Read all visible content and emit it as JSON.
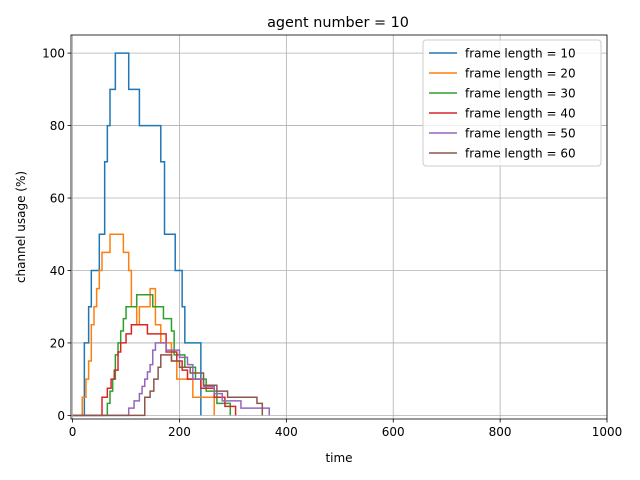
{
  "chart_data": {
    "type": "line",
    "title": "agent number = 10",
    "xlabel": "time",
    "ylabel": "channel usage (%)",
    "xlim": [
      -3,
      1000
    ],
    "ylim": [
      -1,
      105
    ],
    "xticks": [
      0,
      200,
      400,
      600,
      800,
      1000
    ],
    "yticks": [
      0,
      20,
      40,
      60,
      80,
      100
    ],
    "grid": true,
    "legend_position": "top-right",
    "step": true,
    "series": [
      {
        "name": "frame length = 10",
        "color": "#1f77b4",
        "points": [
          [
            0,
            0
          ],
          [
            22,
            0
          ],
          [
            22,
            20
          ],
          [
            30,
            20
          ],
          [
            30,
            30
          ],
          [
            35,
            30
          ],
          [
            35,
            40
          ],
          [
            50,
            40
          ],
          [
            50,
            50
          ],
          [
            60,
            50
          ],
          [
            60,
            70
          ],
          [
            65,
            70
          ],
          [
            65,
            80
          ],
          [
            70,
            80
          ],
          [
            70,
            90
          ],
          [
            80,
            90
          ],
          [
            80,
            100
          ],
          [
            105,
            100
          ],
          [
            105,
            90
          ],
          [
            125,
            90
          ],
          [
            125,
            80
          ],
          [
            165,
            80
          ],
          [
            165,
            70
          ],
          [
            172,
            70
          ],
          [
            172,
            50
          ],
          [
            192,
            50
          ],
          [
            192,
            40
          ],
          [
            205,
            40
          ],
          [
            205,
            30
          ],
          [
            210,
            30
          ],
          [
            210,
            20
          ],
          [
            240,
            20
          ],
          [
            240,
            0
          ]
        ]
      },
      {
        "name": "frame length = 20",
        "color": "#ff7f0e",
        "points": [
          [
            0,
            0
          ],
          [
            18,
            0
          ],
          [
            18,
            5
          ],
          [
            25,
            5
          ],
          [
            25,
            10
          ],
          [
            30,
            10
          ],
          [
            30,
            15
          ],
          [
            35,
            15
          ],
          [
            35,
            25
          ],
          [
            40,
            25
          ],
          [
            40,
            30
          ],
          [
            45,
            30
          ],
          [
            45,
            35
          ],
          [
            50,
            35
          ],
          [
            50,
            40
          ],
          [
            55,
            40
          ],
          [
            55,
            45
          ],
          [
            70,
            45
          ],
          [
            70,
            50
          ],
          [
            95,
            50
          ],
          [
            95,
            45
          ],
          [
            105,
            45
          ],
          [
            105,
            40
          ],
          [
            110,
            40
          ],
          [
            110,
            30
          ],
          [
            120,
            30
          ],
          [
            120,
            25
          ],
          [
            125,
            25
          ],
          [
            125,
            30
          ],
          [
            145,
            30
          ],
          [
            145,
            35
          ],
          [
            155,
            35
          ],
          [
            155,
            25
          ],
          [
            165,
            25
          ],
          [
            165,
            20
          ],
          [
            185,
            20
          ],
          [
            185,
            15
          ],
          [
            195,
            15
          ],
          [
            195,
            10
          ],
          [
            225,
            10
          ],
          [
            225,
            5
          ],
          [
            265,
            5
          ],
          [
            265,
            0
          ]
        ]
      },
      {
        "name": "frame length = 30",
        "color": "#2ca02c",
        "points": [
          [
            0,
            0
          ],
          [
            65,
            0
          ],
          [
            65,
            3.3
          ],
          [
            70,
            3.3
          ],
          [
            70,
            6.7
          ],
          [
            75,
            6.7
          ],
          [
            75,
            10
          ],
          [
            80,
            10
          ],
          [
            80,
            16.7
          ],
          [
            85,
            16.7
          ],
          [
            85,
            20
          ],
          [
            90,
            20
          ],
          [
            90,
            23.3
          ],
          [
            95,
            23.3
          ],
          [
            95,
            26.7
          ],
          [
            100,
            26.7
          ],
          [
            100,
            30
          ],
          [
            120,
            30
          ],
          [
            120,
            33.3
          ],
          [
            150,
            33.3
          ],
          [
            150,
            30
          ],
          [
            170,
            30
          ],
          [
            170,
            26.7
          ],
          [
            185,
            26.7
          ],
          [
            185,
            23.3
          ],
          [
            190,
            23.3
          ],
          [
            190,
            16.7
          ],
          [
            210,
            16.7
          ],
          [
            210,
            13.3
          ],
          [
            230,
            13.3
          ],
          [
            230,
            10
          ],
          [
            250,
            10
          ],
          [
            250,
            6.7
          ],
          [
            270,
            6.7
          ],
          [
            270,
            3.3
          ],
          [
            295,
            3.3
          ],
          [
            295,
            0
          ]
        ]
      },
      {
        "name": "frame length = 40",
        "color": "#d62728",
        "points": [
          [
            0,
            0
          ],
          [
            55,
            0
          ],
          [
            55,
            5
          ],
          [
            65,
            5
          ],
          [
            65,
            7.5
          ],
          [
            72,
            7.5
          ],
          [
            72,
            10
          ],
          [
            78,
            10
          ],
          [
            78,
            12.5
          ],
          [
            85,
            12.5
          ],
          [
            85,
            17.5
          ],
          [
            90,
            17.5
          ],
          [
            90,
            20
          ],
          [
            100,
            20
          ],
          [
            100,
            22.5
          ],
          [
            110,
            22.5
          ],
          [
            110,
            25
          ],
          [
            140,
            25
          ],
          [
            140,
            22.5
          ],
          [
            175,
            22.5
          ],
          [
            175,
            17.5
          ],
          [
            195,
            17.5
          ],
          [
            195,
            15
          ],
          [
            205,
            15
          ],
          [
            205,
            12.5
          ],
          [
            215,
            12.5
          ],
          [
            215,
            10
          ],
          [
            240,
            10
          ],
          [
            240,
            7.5
          ],
          [
            265,
            7.5
          ],
          [
            265,
            5
          ],
          [
            285,
            5
          ],
          [
            285,
            2.5
          ],
          [
            305,
            2.5
          ],
          [
            305,
            0
          ]
        ]
      },
      {
        "name": "frame length = 50",
        "color": "#9467bd",
        "points": [
          [
            0,
            0
          ],
          [
            105,
            0
          ],
          [
            105,
            2
          ],
          [
            115,
            2
          ],
          [
            115,
            4
          ],
          [
            125,
            4
          ],
          [
            125,
            6
          ],
          [
            130,
            6
          ],
          [
            130,
            8
          ],
          [
            135,
            8
          ],
          [
            135,
            10
          ],
          [
            140,
            10
          ],
          [
            140,
            12
          ],
          [
            145,
            12
          ],
          [
            145,
            14
          ],
          [
            150,
            14
          ],
          [
            150,
            18
          ],
          [
            155,
            18
          ],
          [
            155,
            20
          ],
          [
            175,
            20
          ],
          [
            175,
            18
          ],
          [
            200,
            18
          ],
          [
            200,
            16
          ],
          [
            215,
            16
          ],
          [
            215,
            14
          ],
          [
            225,
            14
          ],
          [
            225,
            10
          ],
          [
            245,
            10
          ],
          [
            245,
            8
          ],
          [
            265,
            8
          ],
          [
            265,
            6
          ],
          [
            280,
            6
          ],
          [
            280,
            4
          ],
          [
            315,
            4
          ],
          [
            315,
            2
          ],
          [
            368,
            2
          ],
          [
            368,
            0
          ]
        ]
      },
      {
        "name": "frame length = 60",
        "color": "#8c564b",
        "points": [
          [
            0,
            0
          ],
          [
            135,
            0
          ],
          [
            135,
            5
          ],
          [
            145,
            5
          ],
          [
            145,
            6.7
          ],
          [
            152,
            6.7
          ],
          [
            152,
            10
          ],
          [
            160,
            10
          ],
          [
            160,
            13.3
          ],
          [
            165,
            13.3
          ],
          [
            165,
            16.7
          ],
          [
            185,
            16.7
          ],
          [
            185,
            15
          ],
          [
            200,
            15
          ],
          [
            200,
            13.3
          ],
          [
            220,
            13.3
          ],
          [
            220,
            11.7
          ],
          [
            245,
            11.7
          ],
          [
            245,
            8.3
          ],
          [
            270,
            8.3
          ],
          [
            270,
            6.7
          ],
          [
            290,
            6.7
          ],
          [
            290,
            5
          ],
          [
            345,
            5
          ],
          [
            345,
            3.3
          ],
          [
            355,
            3.3
          ],
          [
            355,
            0
          ]
        ]
      }
    ]
  }
}
